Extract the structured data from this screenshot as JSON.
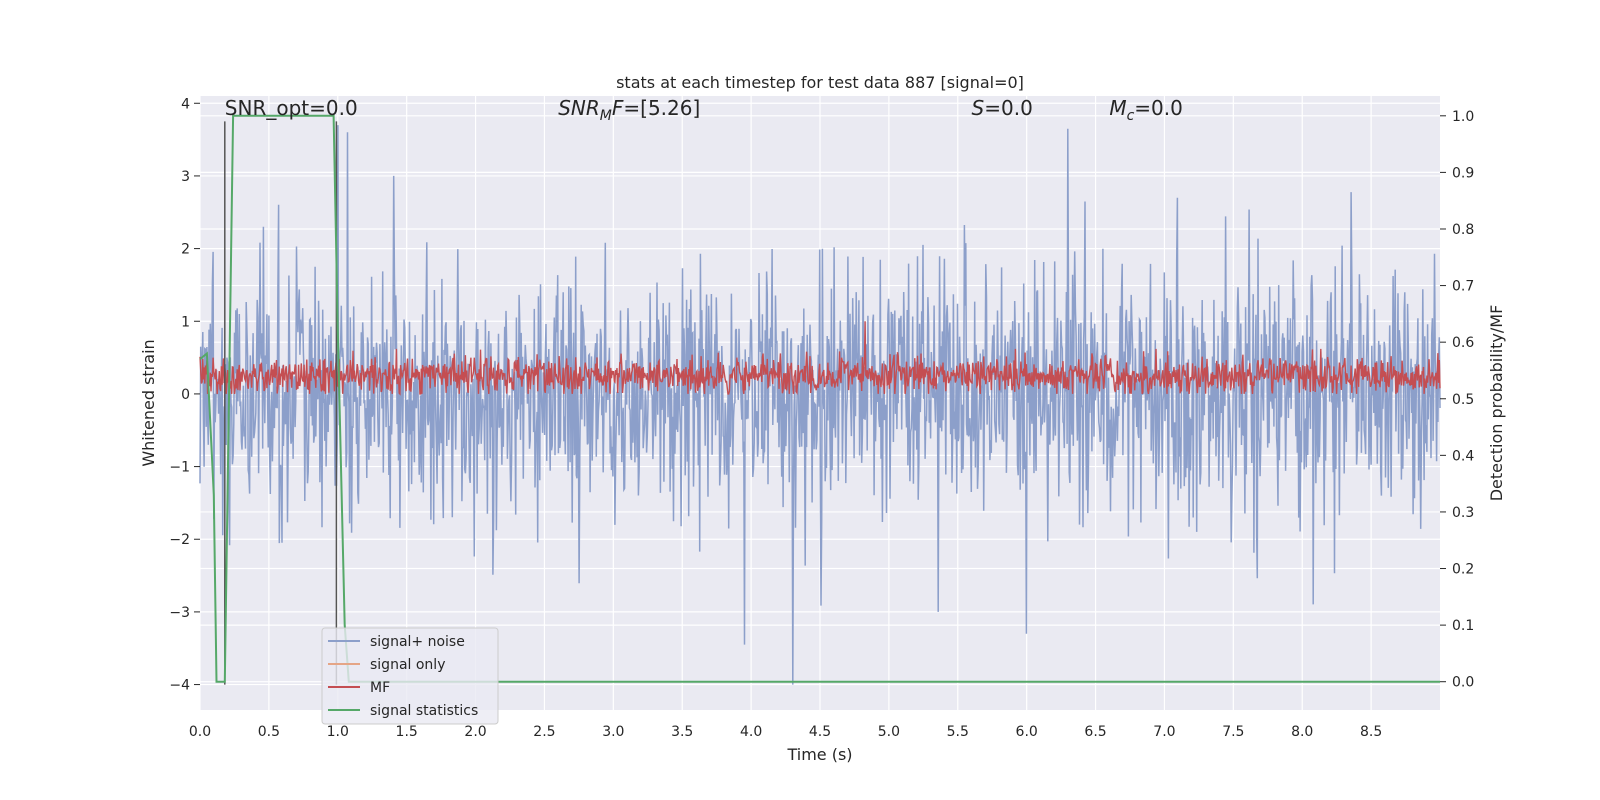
{
  "chart_data": {
    "type": "line",
    "title": "stats at each timestep for test data 887 [signal=0]",
    "xlabel": "Time (s)",
    "ylabel_left": "Whitened strain",
    "ylabel_right": "Detection probability/MF",
    "xlim": [
      0.0,
      9.0
    ],
    "ylim_left": [
      -4.35,
      4.1
    ],
    "ylim_right": [
      -0.05,
      1.035
    ],
    "x_ticks": [
      0.0,
      0.5,
      1.0,
      1.5,
      2.0,
      2.5,
      3.0,
      3.5,
      4.0,
      4.5,
      5.0,
      5.5,
      6.0,
      6.5,
      7.0,
      7.5,
      8.0,
      8.5
    ],
    "x_tick_labels": [
      "0.0",
      "0.5",
      "1.0",
      "1.5",
      "2.0",
      "2.5",
      "3.0",
      "3.5",
      "4.0",
      "4.5",
      "5.0",
      "5.5",
      "6.0",
      "6.5",
      "7.0",
      "7.5",
      "8.0",
      "8.5"
    ],
    "y_ticks_left": [
      -4,
      -3,
      -2,
      -1,
      0,
      1,
      2,
      3,
      4
    ],
    "y_tick_labels_left": [
      "−4",
      "−3",
      "−2",
      "−1",
      "0",
      "1",
      "2",
      "3",
      "4"
    ],
    "y_ticks_right": [
      0.0,
      0.1,
      0.2,
      0.3,
      0.4,
      0.5,
      0.6,
      0.7,
      0.8,
      0.9,
      1.0
    ],
    "y_tick_labels_right": [
      "0.0",
      "0.1",
      "0.2",
      "0.3",
      "0.4",
      "0.5",
      "0.6",
      "0.7",
      "0.8",
      "0.9",
      "1.0"
    ],
    "grid": true,
    "legend_position": "lower-left",
    "annotations": [
      {
        "name": "snr-opt",
        "parts": [
          {
            "t": "SNR_opt=0.0"
          }
        ],
        "x": 0.18,
        "y": 3.95
      },
      {
        "name": "snr-mf",
        "parts": [
          {
            "t": "SNR",
            "italic": true
          },
          {
            "t": "M",
            "italic": true,
            "sub": true
          },
          {
            "t": "F",
            "italic": true
          },
          {
            "t": "=[5.26]"
          }
        ],
        "x": 2.6,
        "y": 3.95
      },
      {
        "name": "s-value",
        "parts": [
          {
            "t": "S",
            "italic": true
          },
          {
            "t": "=0.0"
          }
        ],
        "x": 5.6,
        "y": 3.95
      },
      {
        "name": "mc-value",
        "parts": [
          {
            "t": "M",
            "italic": true
          },
          {
            "t": "c",
            "italic": true,
            "sub": true
          },
          {
            "t": "=0.0"
          }
        ],
        "x": 6.6,
        "y": 3.95
      }
    ],
    "vertical_markers": [
      {
        "x": 0.18,
        "y_range": [
          -4.0,
          3.75
        ],
        "color": "#555555"
      },
      {
        "x": 0.99,
        "y_range": [
          -4.0,
          3.75
        ],
        "color": "#555555"
      }
    ],
    "series": [
      {
        "name": "signal+ noise",
        "axis": "left",
        "color": "#8c9fca",
        "description_stats": {
          "n_points": 1800,
          "mean": 0.0,
          "std": 1.0,
          "typical_max": 2.6,
          "typical_min": -2.6
        },
        "notable_points": [
          {
            "x": 1.0,
            "y": 3.7
          },
          {
            "x": 1.07,
            "y": 3.6
          },
          {
            "x": 4.3,
            "y": -4.0
          },
          {
            "x": 6.3,
            "y": 3.65
          },
          {
            "x": 3.95,
            "y": -3.45
          },
          {
            "x": 6.0,
            "y": -3.3
          }
        ]
      },
      {
        "name": "signal only",
        "axis": "left",
        "color": "#e5a586",
        "values": []
      },
      {
        "name": "MF",
        "axis": "left",
        "color": "#c44e52",
        "description_stats": {
          "n_points": 1800,
          "mean": 0.25,
          "amplitude": 0.3,
          "typical_max": 0.6,
          "typical_min": 0.0
        },
        "notable_points": [
          {
            "x": 4.83,
            "y": 1.0
          }
        ]
      },
      {
        "name": "signal statistics",
        "axis": "right",
        "color": "#55a868",
        "x": [
          0.0,
          0.05,
          0.1,
          0.12,
          0.18,
          0.24,
          0.26,
          0.97,
          1.0,
          1.05,
          1.08,
          9.0
        ],
        "values": [
          0.57,
          0.58,
          0.33,
          0.0,
          0.0,
          1.0,
          1.0,
          1.0,
          0.62,
          0.1,
          0.0,
          0.0
        ]
      }
    ]
  }
}
